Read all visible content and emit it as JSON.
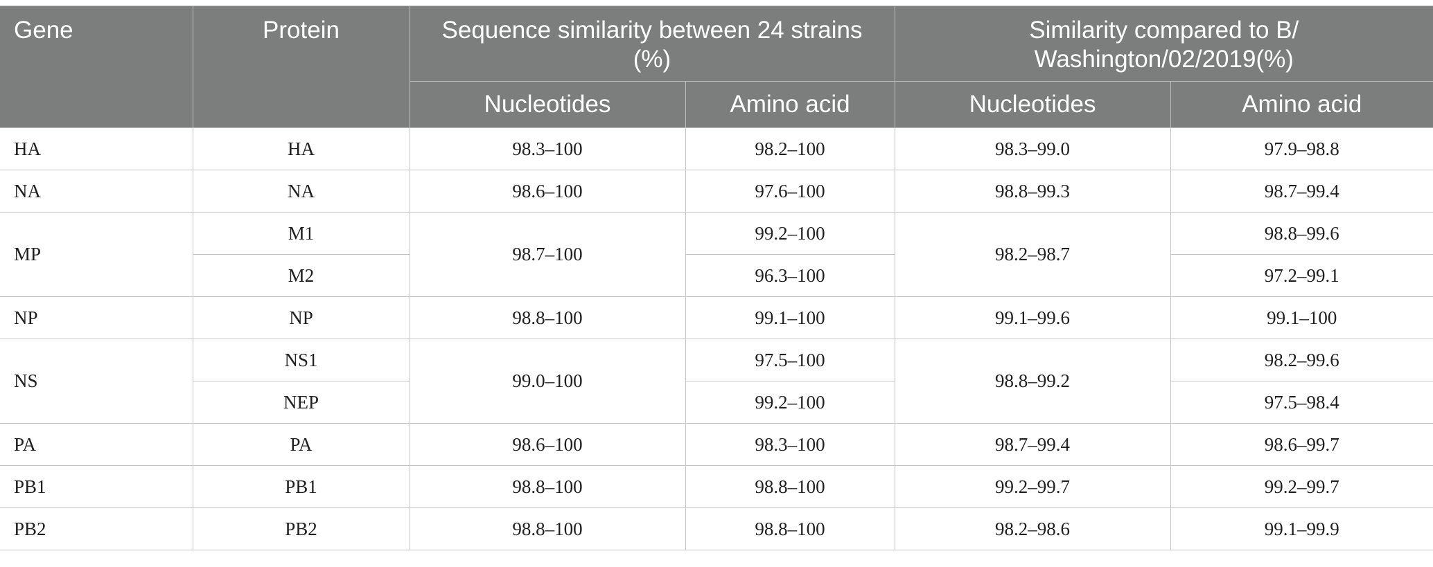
{
  "headers": {
    "gene": "Gene",
    "protein": "Protein",
    "group1": "Sequence similarity between 24 strains (%)",
    "group2": "Similarity compared to B/ Washington/02/2019(%)",
    "nucleotides": "Nucleotides",
    "amino_acid": "Amino acid"
  },
  "rows": {
    "ha": {
      "gene": "HA",
      "protein": "HA",
      "nt1": "98.3–100",
      "aa1": "98.2–100",
      "nt2": "98.3–99.0",
      "aa2": "97.9–98.8"
    },
    "na": {
      "gene": "NA",
      "protein": "NA",
      "nt1": "98.6–100",
      "aa1": "97.6–100",
      "nt2": "98.8–99.3",
      "aa2": "98.7–99.4"
    },
    "mp": {
      "gene": "MP",
      "nt1": "98.7–100",
      "nt2": "98.2–98.7",
      "sub": [
        {
          "protein": "M1",
          "aa1": "99.2–100",
          "aa2": "98.8–99.6"
        },
        {
          "protein": "M2",
          "aa1": "96.3–100",
          "aa2": "97.2–99.1"
        }
      ]
    },
    "np": {
      "gene": "NP",
      "protein": "NP",
      "nt1": "98.8–100",
      "aa1": "99.1–100",
      "nt2": "99.1–99.6",
      "aa2": "99.1–100"
    },
    "ns": {
      "gene": "NS",
      "nt1": "99.0–100",
      "nt2": "98.8–99.2",
      "sub": [
        {
          "protein": "NS1",
          "aa1": "97.5–100",
          "aa2": "98.2–99.6"
        },
        {
          "protein": "NEP",
          "aa1": "99.2–100",
          "aa2": "97.5–98.4"
        }
      ]
    },
    "pa": {
      "gene": "PA",
      "protein": "PA",
      "nt1": "98.6–100",
      "aa1": "98.3–100",
      "nt2": "98.7–99.4",
      "aa2": "98.6–99.7"
    },
    "pb1": {
      "gene": "PB1",
      "protein": "PB1",
      "nt1": "98.8–100",
      "aa1": "98.8–100",
      "nt2": "99.2–99.7",
      "aa2": "99.2–99.7"
    },
    "pb2": {
      "gene": "PB2",
      "protein": "PB2",
      "nt1": "98.8–100",
      "aa1": "98.8–100",
      "nt2": "98.2–98.6",
      "aa2": "99.1–99.9"
    }
  }
}
